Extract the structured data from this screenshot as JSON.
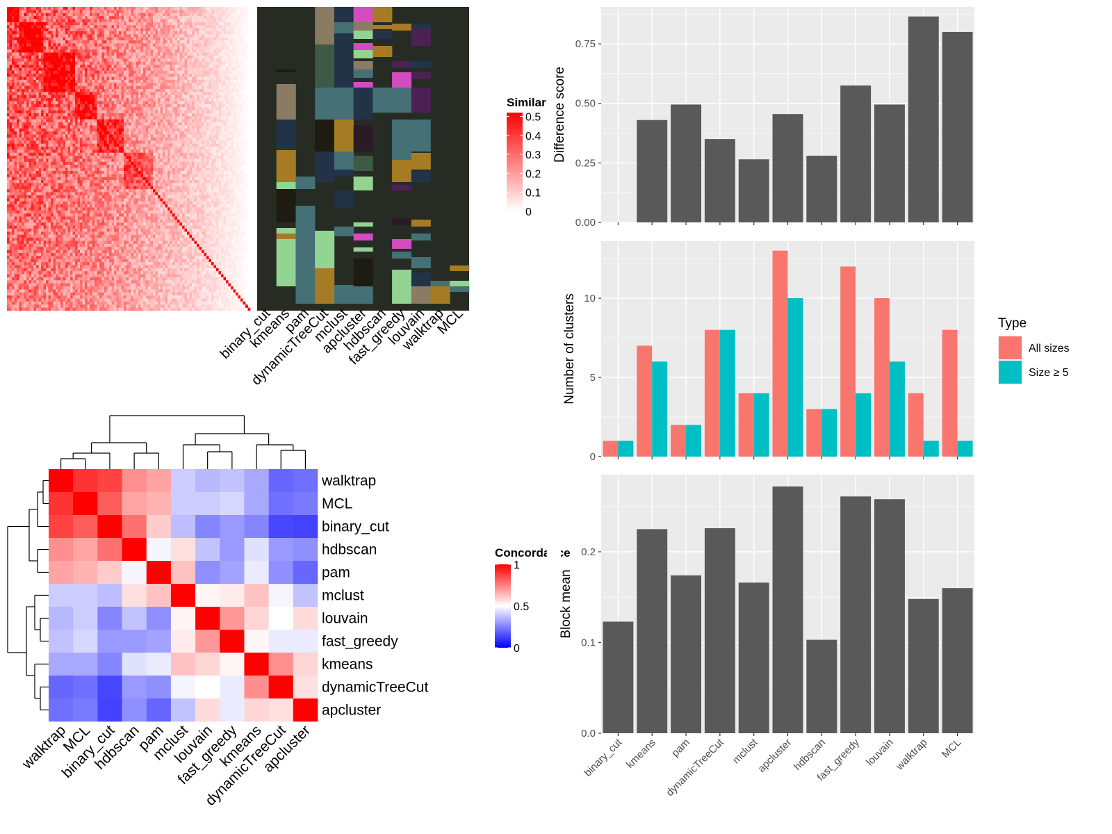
{
  "methods_barplot_order": [
    "binary_cut",
    "kmeans",
    "pam",
    "dynamicTreeCut",
    "mclust",
    "apcluster",
    "hdbscan",
    "fast_greedy",
    "louvain",
    "walktrap",
    "MCL"
  ],
  "chart_data": [
    {
      "type": "heatmap",
      "title": "",
      "legend_title": "Similarity",
      "legend_ticks": [
        "0.5",
        "0.4",
        "0.3",
        "0.2",
        "0.1",
        "0"
      ],
      "color_low": "#ffffff",
      "color_high": "#ff0000",
      "n_terms": 100
    },
    {
      "type": "heatmap",
      "title": "",
      "columns": [
        "binary_cut",
        "kmeans",
        "pam",
        "dynamicTreeCut",
        "mclust",
        "apcluster",
        "hdbscan",
        "fast_greedy",
        "louvain",
        "walktrap",
        "MCL"
      ],
      "background_color": "#262C24",
      "cluster_colors": [
        "#8B7B63",
        "#233347",
        "#457075",
        "#3E5944",
        "#A57C25",
        "#93D492",
        "#1E1B10",
        "#D44CC1",
        "#4C2154",
        "#2A1B26"
      ]
    },
    {
      "type": "heatmap",
      "title": "",
      "legend_title": "Concordance",
      "legend_ticks": [
        "1",
        "0.5",
        "0"
      ],
      "color_low": "#0000ff",
      "color_mid": "#ffffff",
      "color_high": "#ff0000",
      "rows": [
        "walktrap",
        "MCL",
        "binary_cut",
        "hdbscan",
        "pam",
        "mclust",
        "louvain",
        "fast_greedy",
        "kmeans",
        "dynamicTreeCut",
        "apcluster"
      ],
      "columns": [
        "walktrap",
        "MCL",
        "binary_cut",
        "hdbscan",
        "pam",
        "mclust",
        "louvain",
        "fast_greedy",
        "kmeans",
        "dynamicTreeCut",
        "apcluster"
      ],
      "values": [
        [
          1.0,
          0.9,
          0.87,
          0.72,
          0.68,
          0.4,
          0.36,
          0.38,
          0.33,
          0.2,
          0.22
        ],
        [
          0.9,
          1.0,
          0.82,
          0.68,
          0.65,
          0.4,
          0.4,
          0.42,
          0.33,
          0.22,
          0.24
        ],
        [
          0.87,
          0.82,
          1.0,
          0.78,
          0.6,
          0.37,
          0.26,
          0.3,
          0.26,
          0.14,
          0.13
        ],
        [
          0.72,
          0.68,
          0.78,
          1.0,
          0.48,
          0.56,
          0.38,
          0.3,
          0.44,
          0.3,
          0.28
        ],
        [
          0.68,
          0.65,
          0.6,
          0.48,
          1.0,
          0.62,
          0.28,
          0.32,
          0.46,
          0.28,
          0.2
        ],
        [
          0.4,
          0.4,
          0.37,
          0.56,
          0.62,
          1.0,
          0.52,
          0.54,
          0.62,
          0.48,
          0.38
        ],
        [
          0.36,
          0.4,
          0.26,
          0.38,
          0.28,
          0.52,
          1.0,
          0.7,
          0.58,
          0.5,
          0.57
        ],
        [
          0.38,
          0.42,
          0.3,
          0.3,
          0.32,
          0.54,
          0.7,
          1.0,
          0.52,
          0.46,
          0.46
        ],
        [
          0.33,
          0.33,
          0.26,
          0.44,
          0.46,
          0.62,
          0.58,
          0.52,
          1.0,
          0.72,
          0.58
        ],
        [
          0.2,
          0.22,
          0.14,
          0.3,
          0.28,
          0.48,
          0.5,
          0.46,
          0.72,
          1.0,
          0.56
        ],
        [
          0.22,
          0.24,
          0.13,
          0.28,
          0.2,
          0.38,
          0.57,
          0.46,
          0.58,
          0.56,
          1.0
        ]
      ]
    },
    {
      "type": "bar",
      "title": "",
      "ylabel": "Difference score",
      "xlabel": "",
      "categories": [
        "binary_cut",
        "kmeans",
        "pam",
        "dynamicTreeCut",
        "mclust",
        "apcluster",
        "hdbscan",
        "fast_greedy",
        "louvain",
        "walktrap",
        "MCL"
      ],
      "values": [
        0,
        0.43,
        0.495,
        0.35,
        0.265,
        0.455,
        0.28,
        0.575,
        0.495,
        0.865,
        0.8
      ],
      "ylim": [
        0,
        0.905
      ],
      "yticks": [
        "0.00",
        "0.25",
        "0.50",
        "0.75"
      ],
      "bar_color": "#595959",
      "show_x_tick_labels": false
    },
    {
      "type": "bar",
      "title": "",
      "ylabel": "Number of clusters",
      "xlabel": "",
      "categories": [
        "binary_cut",
        "kmeans",
        "pam",
        "dynamicTreeCut",
        "mclust",
        "apcluster",
        "hdbscan",
        "fast_greedy",
        "louvain",
        "walktrap",
        "MCL"
      ],
      "series": [
        {
          "name": "All sizes",
          "values": [
            1,
            7,
            2,
            8,
            4,
            13,
            3,
            12,
            10,
            4,
            8
          ],
          "color": "#F8766D"
        },
        {
          "name": "Size ≥ 5",
          "values": [
            1,
            6,
            2,
            8,
            4,
            10,
            3,
            4,
            6,
            1,
            1
          ],
          "color": "#00BFC4"
        }
      ],
      "ylim": [
        0,
        13.6
      ],
      "yticks": [
        "0",
        "5",
        "10"
      ],
      "legend_title": "Type",
      "legend_position": "right",
      "show_x_tick_labels": false
    },
    {
      "type": "bar",
      "title": "",
      "ylabel": "Block mean",
      "xlabel": "",
      "categories": [
        "binary_cut",
        "kmeans",
        "pam",
        "dynamicTreeCut",
        "mclust",
        "apcluster",
        "hdbscan",
        "fast_greedy",
        "louvain",
        "walktrap",
        "MCL"
      ],
      "values": [
        0.123,
        0.225,
        0.174,
        0.226,
        0.166,
        0.272,
        0.103,
        0.261,
        0.258,
        0.148,
        0.16
      ],
      "ylim": [
        0,
        0.285
      ],
      "yticks": [
        "0.0",
        "0.1",
        "0.2"
      ],
      "bar_color": "#595959",
      "show_x_tick_labels": true
    }
  ]
}
